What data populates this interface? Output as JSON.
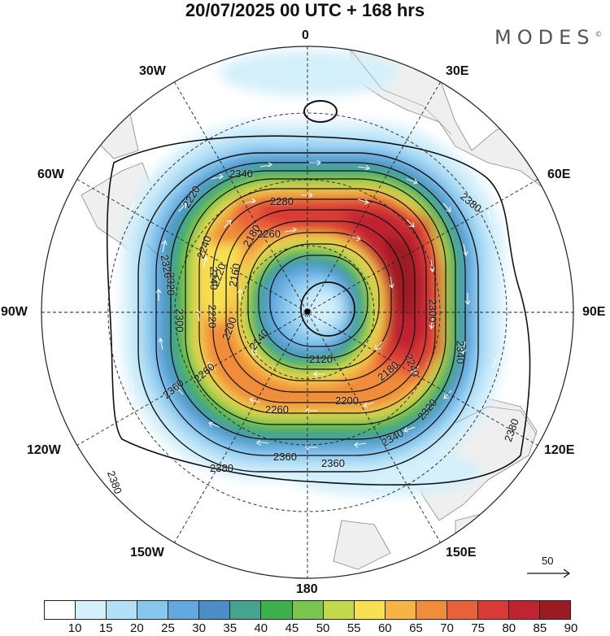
{
  "title": "20/07/2025  00 UTC  + 168 hrs",
  "brand": "MODES",
  "brand_mark": "©",
  "longitude_labels": [
    "0",
    "30E",
    "60E",
    "90E",
    "120E",
    "150E",
    "180",
    "150W",
    "120W",
    "90W",
    "60W",
    "30W"
  ],
  "contour_labels": [
    "2340",
    "2380",
    "2320",
    "2280",
    "2260",
    "2220",
    "2240",
    "2220",
    "2180",
    "2160",
    "2200",
    "2300",
    "2340",
    "2240",
    "2120",
    "2140",
    "2180",
    "2200",
    "2260",
    "2260",
    "2320",
    "2340",
    "2360",
    "2360",
    "2380",
    "2380",
    "2380",
    "2360",
    "2300",
    "2320",
    "2220",
    "2240"
  ],
  "colorbar": {
    "ticks": [
      "10",
      "15",
      "20",
      "25",
      "30",
      "35",
      "40",
      "45",
      "50",
      "55",
      "60",
      "65",
      "70",
      "75",
      "80",
      "85",
      "90"
    ],
    "colors": [
      "#ffffff",
      "#d4f0fb",
      "#b4e0f6",
      "#87c7ee",
      "#63a9df",
      "#4a8dc8",
      "#45a48e",
      "#3cb04c",
      "#7ac54d",
      "#c3d94c",
      "#f7e153",
      "#f6b447",
      "#f08c3b",
      "#e9613a",
      "#d93a35",
      "#bf2430",
      "#9a1b22"
    ]
  },
  "reference_vector": "50",
  "map": {
    "projection": "south polar stereographic",
    "field": "wind speed shaded with geopotential height contours and wind vectors"
  }
}
